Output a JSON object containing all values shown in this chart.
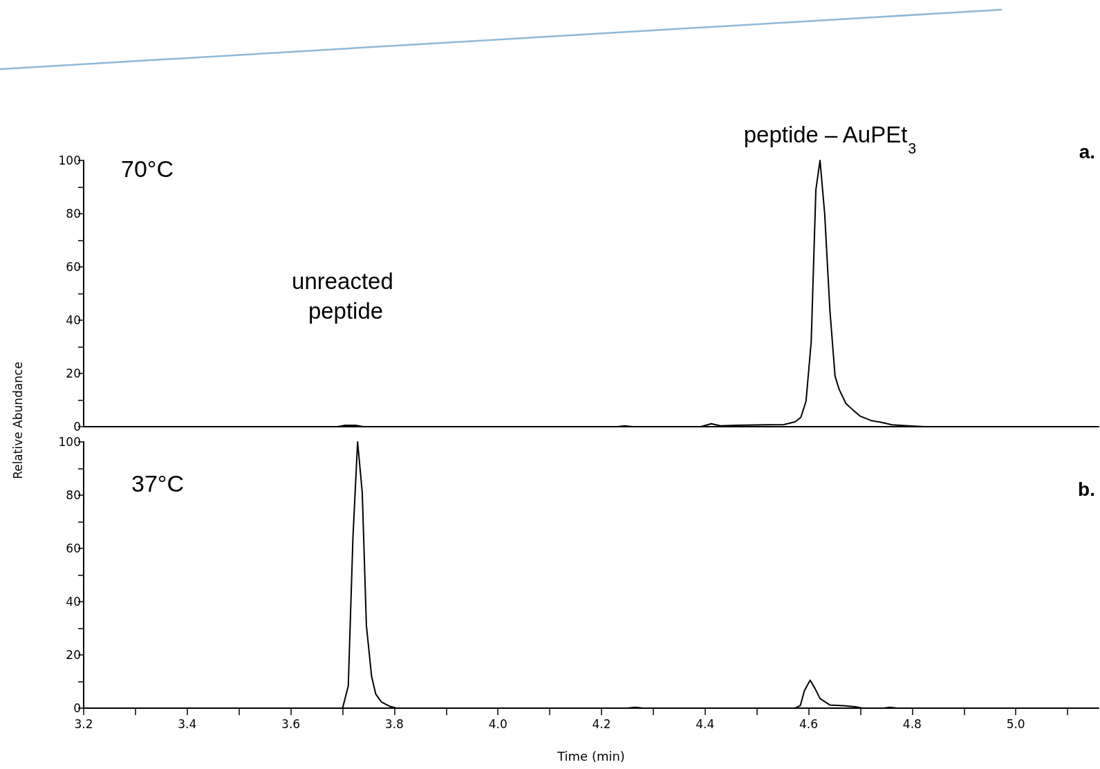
{
  "chart_data": [
    {
      "type": "line",
      "title": "a.",
      "ylabel": "Relative Abundance",
      "annotations": [
        "70°C",
        "unreacted peptide",
        "peptide – AuPEt$_{3}$"
      ],
      "x": [
        3.2,
        3.69,
        3.705,
        3.725,
        3.74,
        4.23,
        4.245,
        4.26,
        4.392,
        4.412,
        4.43,
        4.459,
        4.517,
        4.552,
        4.574,
        4.585,
        4.595,
        4.605,
        4.614,
        4.622,
        4.631,
        4.641,
        4.651,
        4.659,
        4.672,
        4.686,
        4.699,
        4.721,
        4.739,
        4.761,
        4.792,
        4.824,
        5.16
      ],
      "series": [
        {
          "color": "#000000",
          "values": [
            0,
            0,
            0.5,
            0.5,
            0,
            0,
            0.3,
            0,
            0,
            1.1,
            0.3,
            0.5,
            0.7,
            0.8,
            1.8,
            3.5,
            9.6,
            32,
            89,
            100,
            80,
            44,
            19,
            14,
            8.7,
            6.2,
            4,
            2.3,
            1.7,
            0.7,
            0.3,
            0,
            0
          ]
        }
      ],
      "xlim": [
        3.2,
        5.16
      ],
      "ylim": [
        0,
        100
      ],
      "yticks": [
        0,
        {
          "value": 10,
          "label": null
        },
        20,
        {
          "value": 30,
          "label": null
        },
        40,
        {
          "value": 50,
          "label": null
        },
        60,
        {
          "value": 70,
          "label": null
        },
        80,
        {
          "value": 90,
          "label": null
        },
        100
      ],
      "tick_labels": "y",
      "grid": false,
      "marker": "none",
      "line_style": "solid"
    },
    {
      "type": "line",
      "title": "b.",
      "xlabel": "Time (min)",
      "annotations": [
        "37°C"
      ],
      "x": [
        3.2,
        3.7,
        3.711,
        3.72,
        3.729,
        3.738,
        3.746,
        3.756,
        3.764,
        3.775,
        3.791,
        3.804,
        4.25,
        4.265,
        4.28,
        4.574,
        4.584,
        4.592,
        4.603,
        4.612,
        4.622,
        4.641,
        4.668,
        4.69,
        4.704,
        4.745,
        4.757,
        4.77,
        5.16
      ],
      "series": [
        {
          "color": "#000000",
          "values": [
            0,
            0,
            8.3,
            64,
            100,
            81,
            31,
            12,
            5.3,
            2.3,
            0.7,
            0,
            0,
            0.3,
            0,
            0,
            1,
            6.6,
            10.5,
            7.5,
            3.6,
            1.2,
            0.9,
            0.5,
            0,
            0,
            0.3,
            0,
            0
          ]
        }
      ],
      "xlim": [
        3.2,
        5.16
      ],
      "ylim": [
        0,
        100
      ],
      "xticks": [
        3.2,
        {
          "value": 3.3,
          "label": null
        },
        3.4,
        {
          "value": 3.5,
          "label": null
        },
        3.6,
        {
          "value": 3.7,
          "label": null
        },
        3.8,
        {
          "value": 3.9,
          "label": null
        },
        {
          "value": 4,
          "label": "4.0"
        },
        {
          "value": 4.1,
          "label": null
        },
        4.2,
        {
          "value": 4.3,
          "label": null
        },
        4.4,
        {
          "value": 4.5,
          "label": null
        },
        4.6,
        {
          "value": 4.7,
          "label": null
        },
        4.8,
        {
          "value": 4.9,
          "label": null
        },
        {
          "value": 5,
          "label": "5.0"
        },
        {
          "value": 5.1,
          "label": null
        }
      ],
      "yticks": [
        0,
        {
          "value": 10,
          "label": null
        },
        20,
        {
          "value": 30,
          "label": null
        },
        40,
        {
          "value": 50,
          "label": null
        },
        60,
        {
          "value": 70,
          "label": null
        },
        80,
        {
          "value": 90,
          "label": null
        },
        100
      ],
      "grid": false,
      "marker": "none",
      "line_style": "solid"
    }
  ]
}
